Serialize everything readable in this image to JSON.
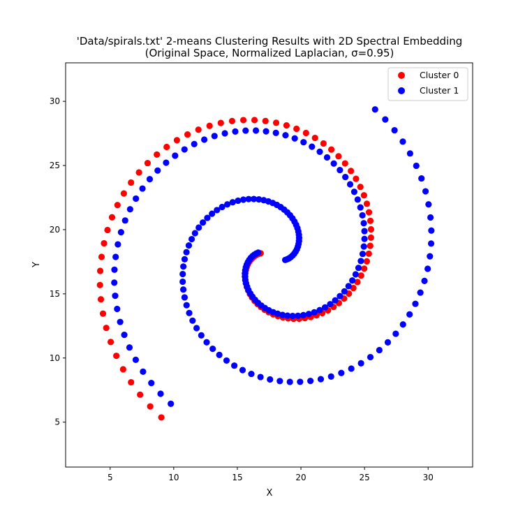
{
  "chart_data": {
    "type": "scatter",
    "title_line1": "'Data/spirals.txt' 2-means Clustering Results with 2D Spectral Embedding",
    "title_line2": "(Original Space, Normalized Laplacian, σ=0.95)",
    "xlabel": "X",
    "ylabel": "Y",
    "xlim": [
      1.5,
      33.5
    ],
    "ylim": [
      1.5,
      33.0
    ],
    "xticks": [
      5,
      10,
      15,
      20,
      25,
      30
    ],
    "yticks": [
      5,
      10,
      15,
      20,
      25,
      30
    ],
    "legend_position": "top-right",
    "series": [
      {
        "name": "Cluster 0",
        "color": "#ff0000",
        "spiral": {
          "r_start": 1.0,
          "r_end": 15.3,
          "theta_start_deg": 165,
          "theta_end_deg": 595,
          "center": [
            17.8,
            17.9
          ],
          "count": 95
        }
      },
      {
        "name": "Cluster 1",
        "color": "#0000ff",
        "spirals": [
          {
            "r_start": 1.0,
            "r_end": 14.0,
            "theta_start_deg": -15,
            "theta_end_deg": 415,
            "center": [
              17.8,
              17.9
            ],
            "count": 95
          },
          {
            "r_start": 1.2,
            "r_end": 14.0,
            "theta_start_deg": 165,
            "theta_end_deg": 595,
            "center": [
              17.8,
              17.9
            ],
            "count": 95
          }
        ]
      }
    ]
  }
}
